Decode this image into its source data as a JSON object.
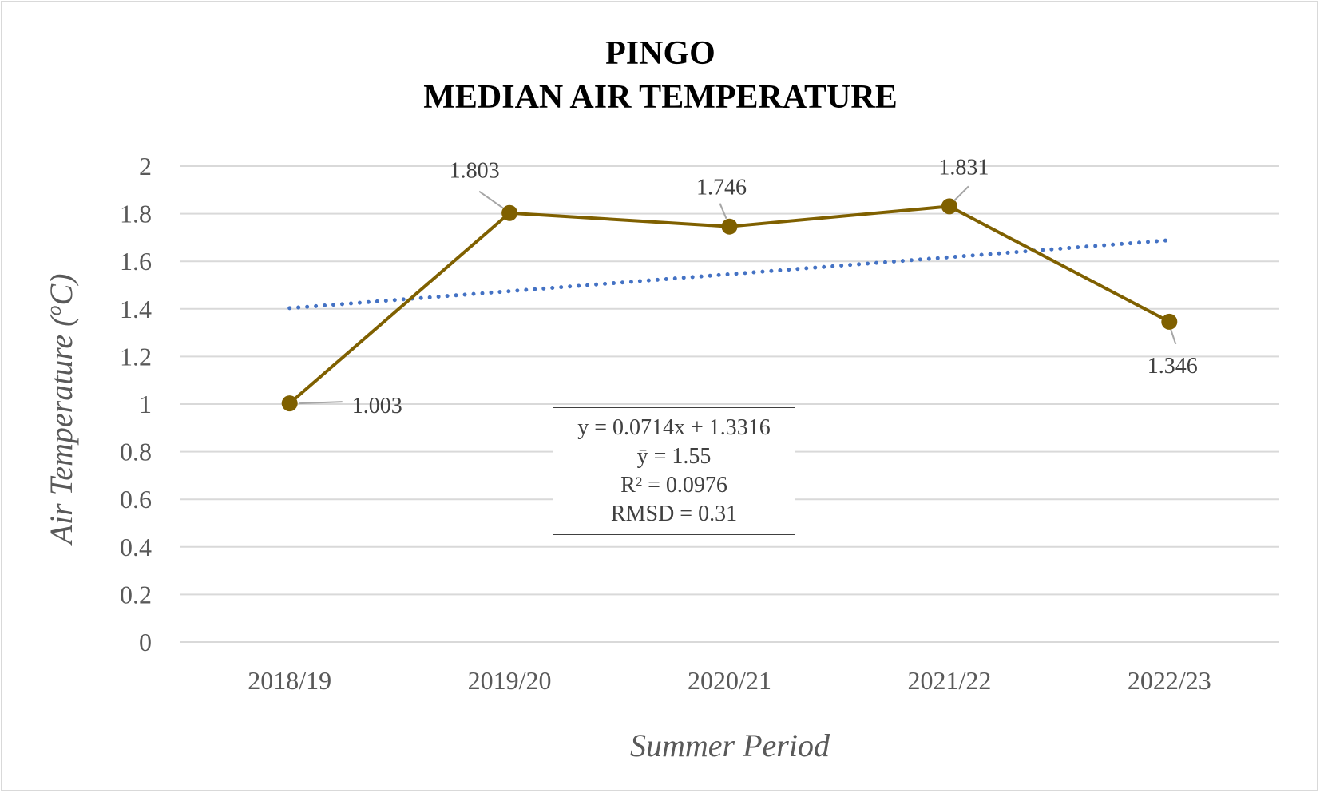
{
  "chart_data": {
    "type": "line",
    "title_lines": [
      "PINGO",
      "MEDIAN AIR TEMPERATURE"
    ],
    "xlabel": "Summer Period",
    "ylabel_prefix": "Air Temperature (",
    "ylabel_sup": "o",
    "ylabel_suffix": "C)",
    "categories": [
      "2018/19",
      "2019/20",
      "2020/21",
      "2021/22",
      "2022/23"
    ],
    "series": [
      {
        "values": [
          1.003,
          1.803,
          1.746,
          1.831,
          1.346
        ],
        "color": "#7f6000"
      }
    ],
    "data_labels": [
      "1.003",
      "1.803",
      "1.746",
      "1.831",
      "1.346"
    ],
    "trendline": {
      "type": "linear",
      "slope": 0.0714,
      "intercept": 1.3316,
      "color": "#4472c4",
      "style": "dotted"
    },
    "ylim": [
      0,
      2
    ],
    "yticks": [
      "0",
      "0.2",
      "0.4",
      "0.6",
      "0.8",
      "1",
      "1.2",
      "1.4",
      "1.6",
      "1.8",
      "2"
    ],
    "grid": true,
    "legend": "none"
  },
  "stats_box": {
    "line1": "y = 0.0714x + 1.3316",
    "line2": "ȳ = 1.55",
    "line3": "R² = 0.0976",
    "line4": "RMSD = 0.31"
  }
}
